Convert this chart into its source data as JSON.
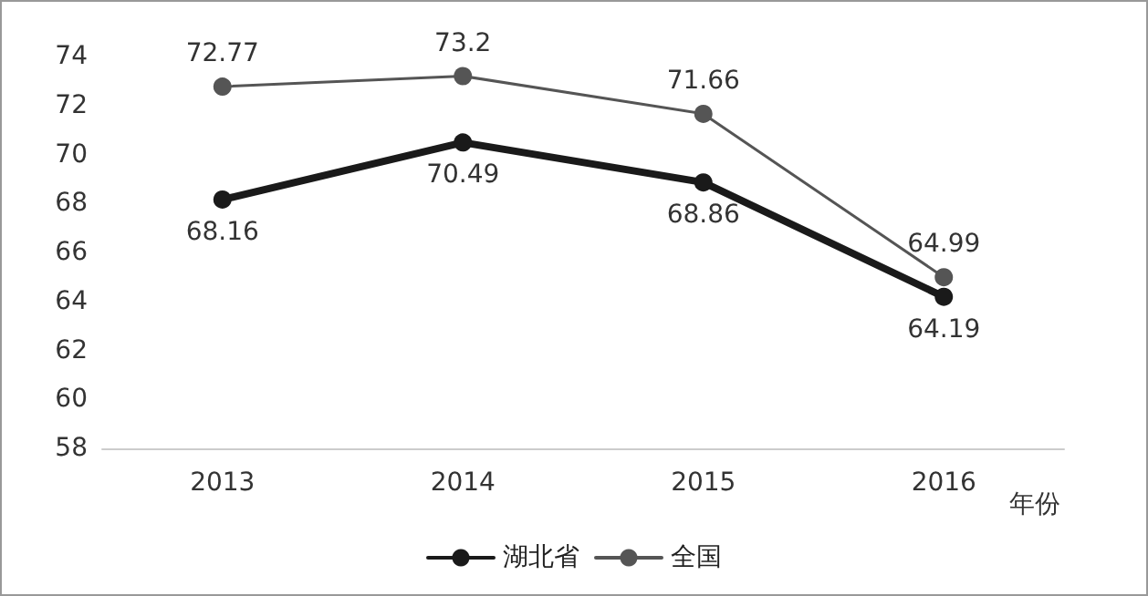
{
  "chart_data": {
    "type": "line",
    "xlabel": "年份",
    "categories": [
      "2013",
      "2014",
      "2015",
      "2016"
    ],
    "series": [
      {
        "name": "湖北省",
        "color": "#1a1a1a",
        "values": [
          68.16,
          70.49,
          68.86,
          64.19
        ]
      },
      {
        "name": "全国",
        "color": "#555555",
        "values": [
          72.77,
          73.2,
          71.66,
          64.99
        ]
      }
    ],
    "ylim": [
      58,
      74
    ],
    "yticks": [
      58,
      60,
      62,
      64,
      66,
      68,
      70,
      72,
      74
    ],
    "grid": false,
    "legend": "bottom",
    "marker": "circle",
    "line_style": "solid",
    "data_labels": true
  }
}
